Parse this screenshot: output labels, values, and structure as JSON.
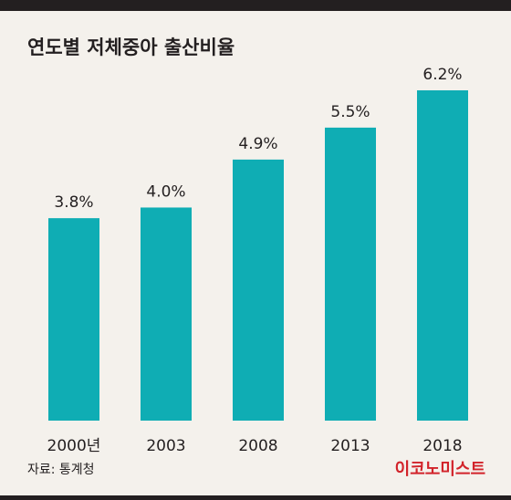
{
  "title": "연도별 저체중아 출산비율",
  "source": "자료: 통계청",
  "brand": "이코노미스트",
  "colors": {
    "bar": "#0fadb4",
    "text": "#231f20",
    "brand": "#d2232a",
    "background": "#f4f1ec"
  },
  "chart_data": {
    "type": "bar",
    "title": "연도별 저체중아 출산비율",
    "categories": [
      "2000년",
      "2003",
      "2008",
      "2013",
      "2018"
    ],
    "values": [
      3.8,
      4.0,
      4.9,
      5.5,
      6.2
    ],
    "data_labels": [
      "3.8%",
      "4.0%",
      "4.9%",
      "5.5%",
      "6.2%"
    ],
    "xlabel": "",
    "ylabel": "",
    "ylim": [
      0,
      6.2
    ],
    "grid": false,
    "legend": "none"
  }
}
